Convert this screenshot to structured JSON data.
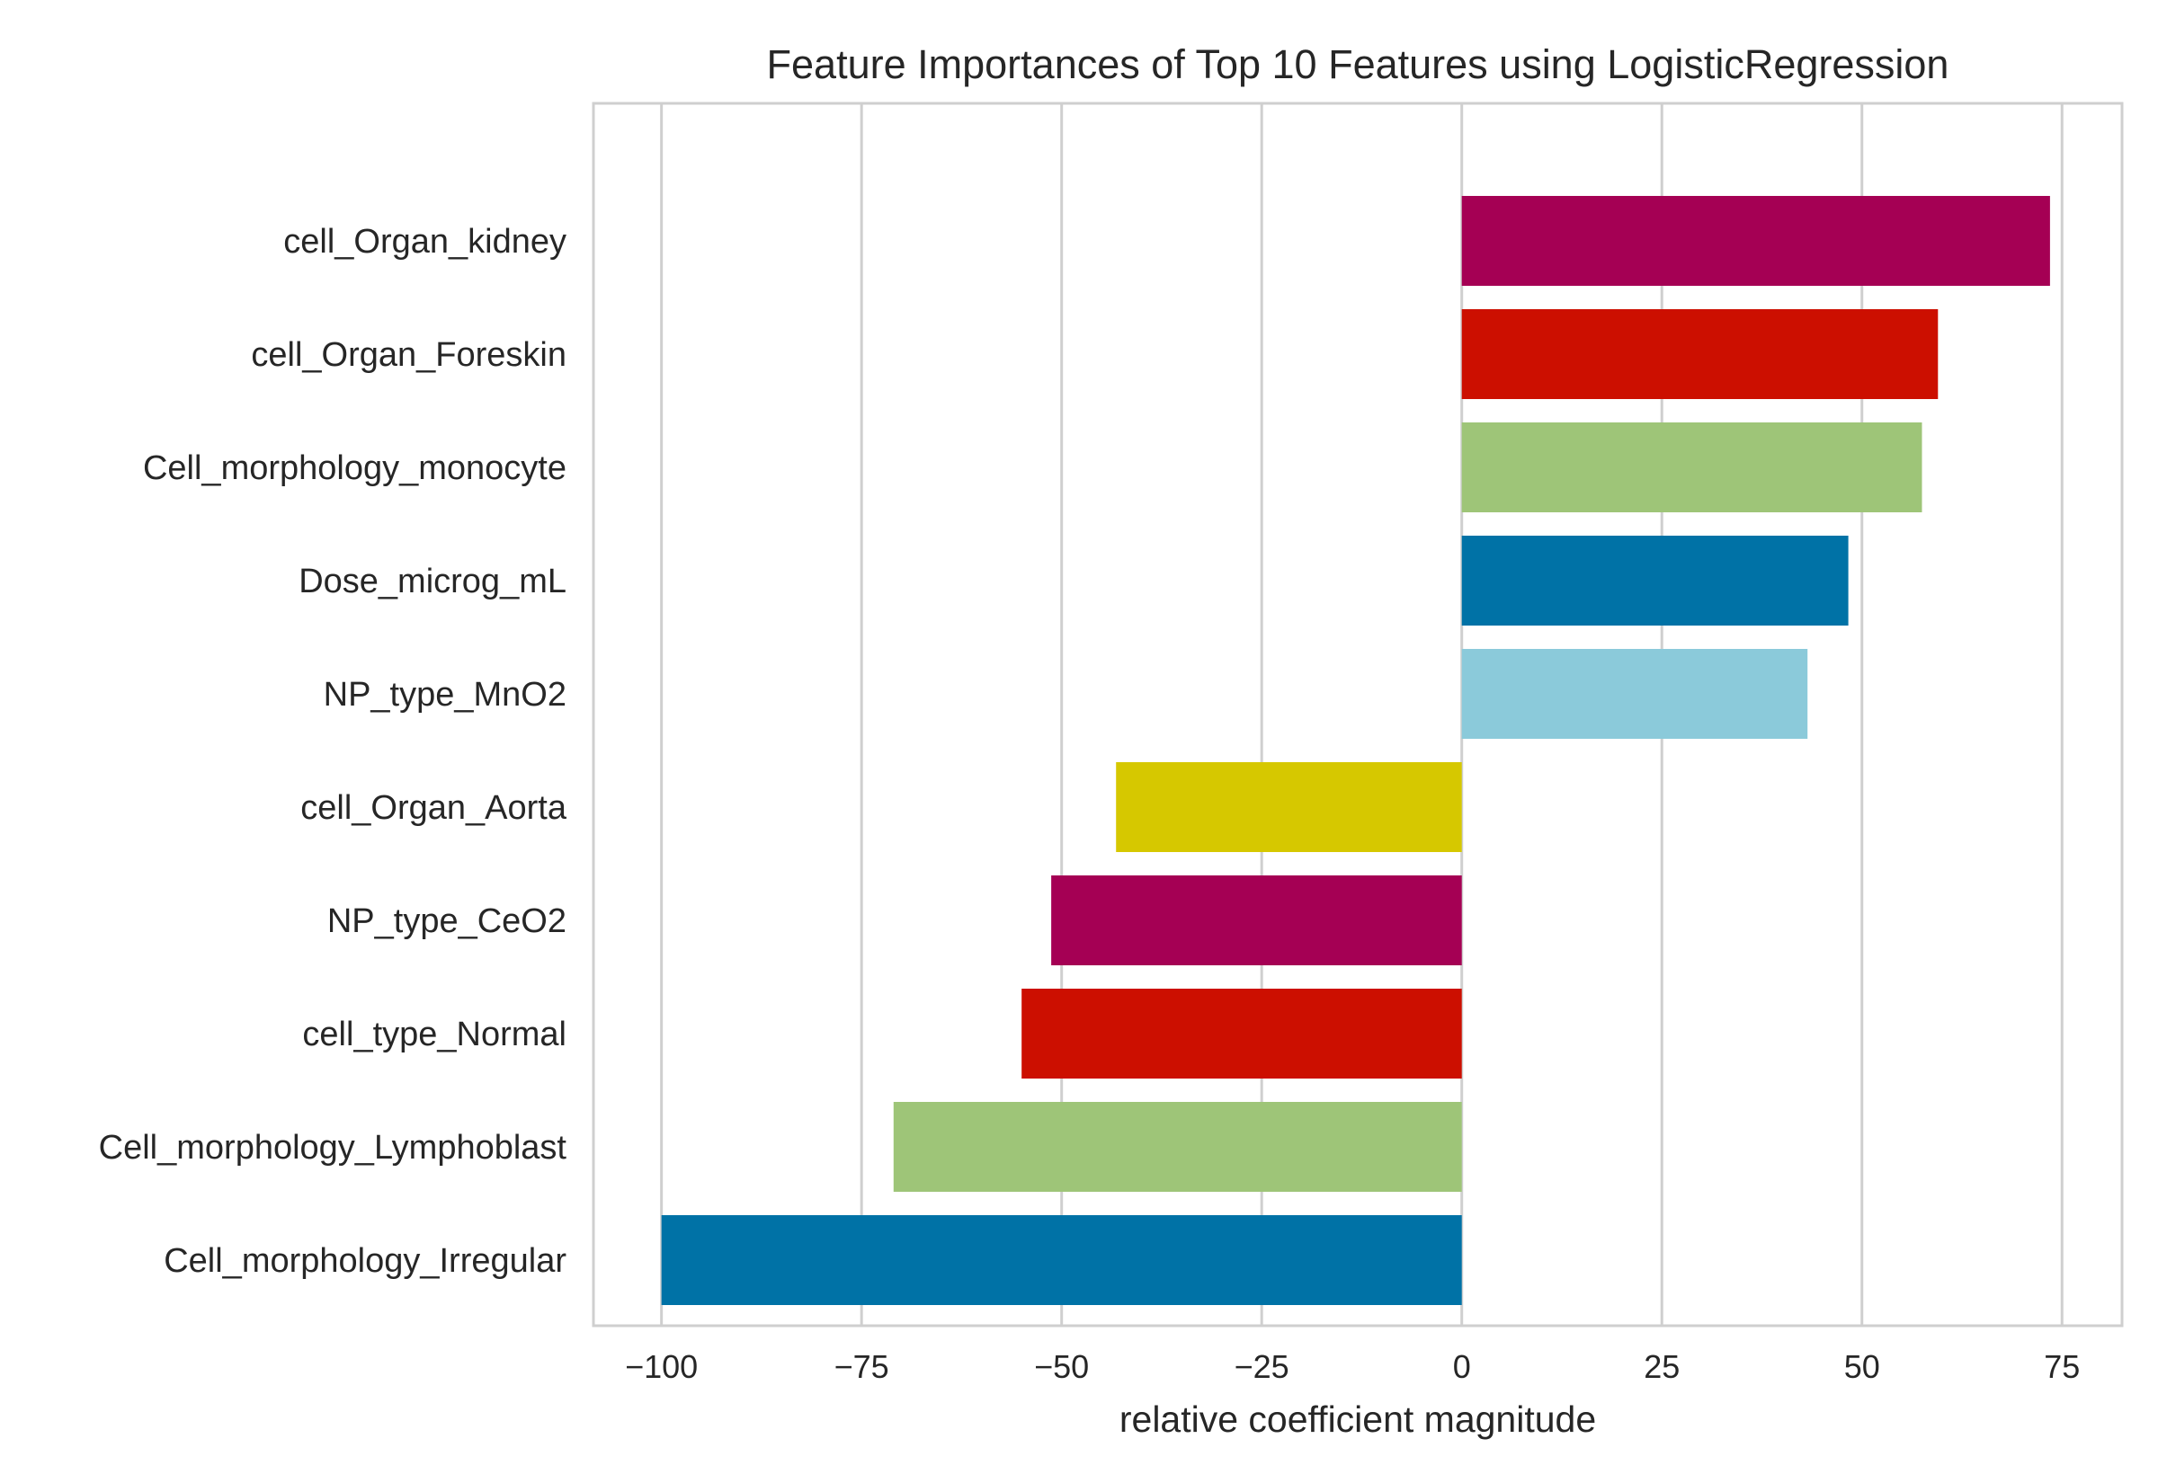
{
  "chart_data": {
    "type": "bar",
    "orientation": "horizontal",
    "title": "Feature Importances of Top 10 Features using LogisticRegression",
    "xlabel": "relative coefficient magnitude",
    "ylabel": "",
    "xlim": [
      -108.5,
      82.5
    ],
    "xticks": [
      -100,
      -75,
      -50,
      -25,
      0,
      25,
      50,
      75
    ],
    "xtick_labels": [
      "−100",
      "−75",
      "−50",
      "−25",
      "0",
      "25",
      "50",
      "75"
    ],
    "grid": true,
    "categories": [
      "cell_Organ_kidney",
      "cell_Organ_Foreskin",
      "Cell_morphology_monocyte",
      "Dose_microg_mL",
      "NP_type_MnO2",
      "cell_Organ_Aorta",
      "NP_type_CeO2",
      "cell_type_Normal",
      "Cell_morphology_Lymphoblast",
      "Cell_morphology_Irregular"
    ],
    "values": [
      73.5,
      59.5,
      57.5,
      48.3,
      43.2,
      -43.2,
      -51.3,
      -55.0,
      -71.0,
      -100.0
    ],
    "colors": [
      "#a50054",
      "#cc0f00",
      "#9ec578",
      "#0072a6",
      "#8bcada",
      "#d6c800",
      "#a50054",
      "#cc0f00",
      "#9ec578",
      "#0072a6"
    ]
  }
}
